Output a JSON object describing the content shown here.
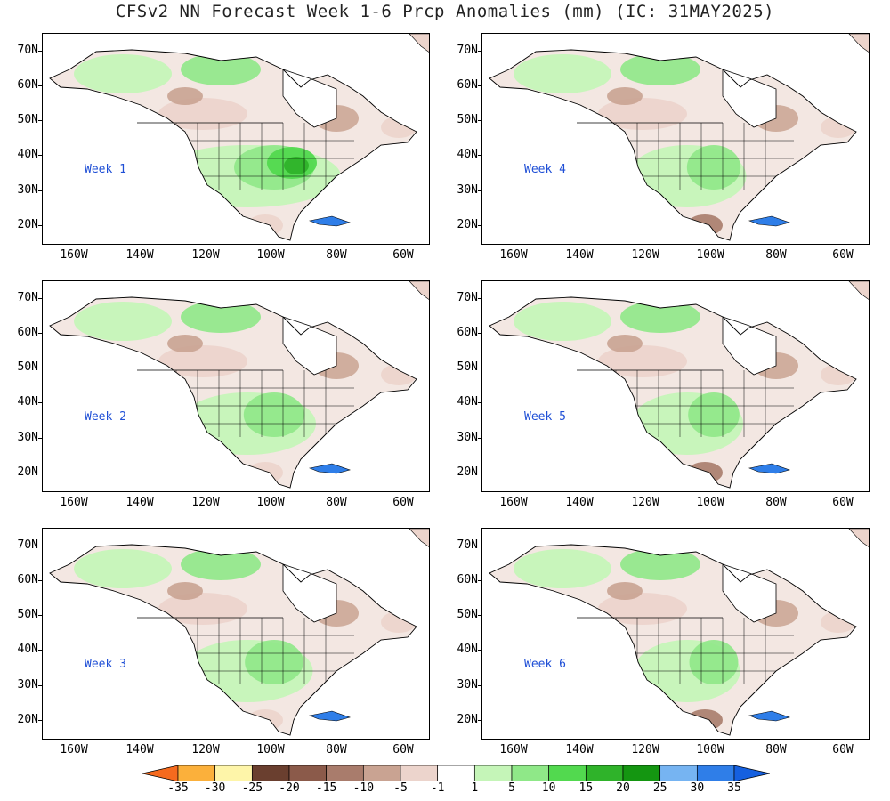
{
  "title": "CFSv2 NN Forecast Week 1-6 Prcp Anomalies (mm) (IC: 31MAY2025)",
  "panels": [
    {
      "label": "Week 1",
      "intensity": 1.0
    },
    {
      "label": "Week 4",
      "intensity": 0.45
    },
    {
      "label": "Week 2",
      "intensity": 0.6
    },
    {
      "label": "Week 5",
      "intensity": 0.4
    },
    {
      "label": "Week 3",
      "intensity": 0.55
    },
    {
      "label": "Week 6",
      "intensity": 0.35
    }
  ],
  "lat_labels": [
    "70N",
    "60N",
    "50N",
    "40N",
    "30N",
    "20N"
  ],
  "lon_labels": [
    "160W",
    "140W",
    "120W",
    "100W",
    "80W",
    "60W"
  ],
  "colorbar": {
    "labels": [
      "-35",
      "-30",
      "-25",
      "-20",
      "-15",
      "-10",
      "-5",
      "-1",
      "1",
      "5",
      "10",
      "15",
      "20",
      "25",
      "30",
      "35"
    ],
    "colors": [
      "#f56a1e",
      "#fbb03b",
      "#fef5a9",
      "#6a3f2f",
      "#8b5a4a",
      "#a97c6c",
      "#c9a392",
      "#ecd4cc",
      "#ffffff",
      "#c5f5b8",
      "#8fe888",
      "#52d94f",
      "#2fb32a",
      "#149611",
      "#76b4f2",
      "#2f7ee8",
      "#1560e0"
    ]
  }
}
